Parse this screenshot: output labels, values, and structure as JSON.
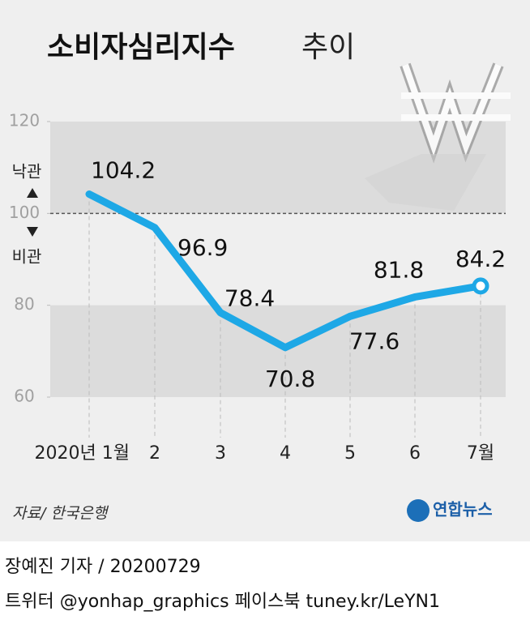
{
  "chart_data": {
    "type": "line",
    "title": "소비자심리지수",
    "subtitle": "추이",
    "categories": [
      "2020년 1월",
      "2",
      "3",
      "4",
      "5",
      "6",
      "7월"
    ],
    "values": [
      104.2,
      96.9,
      78.4,
      70.8,
      77.6,
      81.8,
      84.2
    ],
    "color": "#1ea8e6",
    "ylim": [
      60,
      120
    ],
    "yticks": [
      60,
      80,
      100,
      120
    ],
    "reference_value": 100,
    "upper_label": "낙관",
    "lower_label": "비관",
    "source": "자료/ 한국은행",
    "logo": "연합뉴스"
  },
  "footer": {
    "byline": "장예진 기자 / 20200729",
    "links": "트위터 @yonhap_graphics  페이스북 tuney.kr/LeYN1"
  }
}
